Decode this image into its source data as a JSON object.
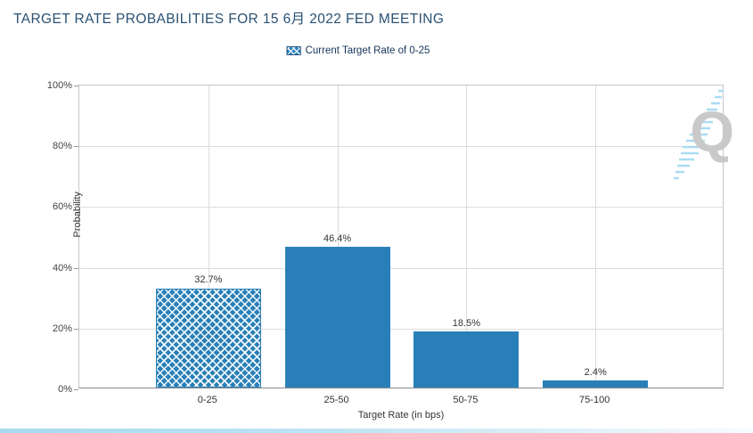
{
  "page": {
    "title": "TARGET RATE PROBABILITIES FOR 15 6月 2022 FED MEETING"
  },
  "legend": {
    "label": "Current Target Rate of 0-25",
    "swatch_style": "blue-crosshatch"
  },
  "watermark": {
    "letter": "Q",
    "color": "#c9c9c9",
    "streak_color": "#aadcf2"
  },
  "chart_data": {
    "type": "bar",
    "title": "TARGET RATE PROBABILITIES FOR 15 6月 2022 FED MEETING",
    "categories": [
      "0-25",
      "25-50",
      "50-75",
      "75-100"
    ],
    "values": [
      32.7,
      46.4,
      18.5,
      2.4
    ],
    "value_labels": [
      "32.7%",
      "46.4%",
      "18.5%",
      "2.4%"
    ],
    "hatched_category": "0-25",
    "xlabel": "Target Rate (in bps)",
    "ylabel": "Probability",
    "ylim": [
      0,
      100
    ],
    "yticks": [
      "0%",
      "20%",
      "40%",
      "60%",
      "80%",
      "100%"
    ],
    "grid": true,
    "legend_position": "top-center",
    "colors": {
      "bar": "#2980b9",
      "title": "#2a5173",
      "legend_text": "#17365d",
      "grid": "#dcdcdc",
      "tick_text": "#424242"
    }
  }
}
